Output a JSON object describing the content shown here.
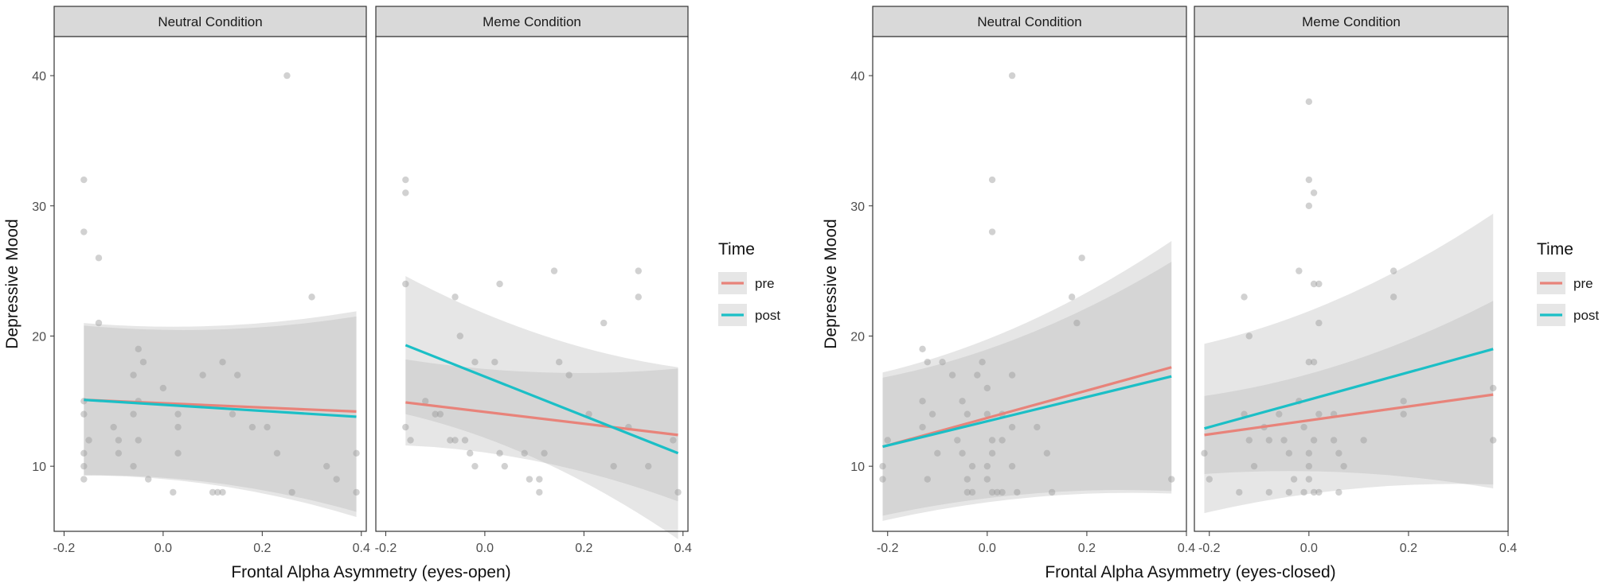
{
  "colors": {
    "pre": "#e8837a",
    "post": "#1bbfc6",
    "ci_light": "#e6e6e6",
    "ci_dark": "#d6d6d6",
    "point": "#9a9a9a",
    "strip_bg": "#d9d9d9",
    "axis_text": "#4d4d4d"
  },
  "chart_data": [
    {
      "type": "scatter",
      "xlabel": "Frontal Alpha Asymmetry (eyes-open)",
      "ylabel": "Depressive Mood",
      "xlim": [
        -0.22,
        0.41
      ],
      "ylim": [
        5,
        43
      ],
      "xticks": [
        -0.2,
        0.0,
        0.2,
        0.4
      ],
      "xtick_labels": [
        "-0.2",
        "0.0",
        "0.2",
        "0.4"
      ],
      "yticks": [
        10,
        20,
        30,
        40
      ],
      "ytick_labels": [
        "10",
        "20",
        "30",
        "40"
      ],
      "legend": {
        "title": "Time",
        "position": "right",
        "entries": [
          {
            "label": "pre",
            "series": "pre"
          },
          {
            "label": "post",
            "series": "post"
          }
        ]
      },
      "facets": [
        {
          "label": "Neutral Condition",
          "points": [
            [
              -0.16,
              32
            ],
            [
              -0.16,
              28
            ],
            [
              -0.13,
              26
            ],
            [
              -0.13,
              21
            ],
            [
              -0.16,
              15
            ],
            [
              -0.16,
              14
            ],
            [
              -0.15,
              12
            ],
            [
              -0.16,
              11
            ],
            [
              -0.16,
              10
            ],
            [
              -0.16,
              9
            ],
            [
              -0.1,
              13
            ],
            [
              -0.09,
              12
            ],
            [
              -0.09,
              11
            ],
            [
              -0.06,
              17
            ],
            [
              -0.05,
              15
            ],
            [
              -0.05,
              19
            ],
            [
              -0.04,
              18
            ],
            [
              -0.06,
              14
            ],
            [
              -0.05,
              12
            ],
            [
              -0.03,
              9
            ],
            [
              -0.06,
              10
            ],
            [
              0.0,
              16
            ],
            [
              0.03,
              14
            ],
            [
              0.03,
              13
            ],
            [
              0.03,
              11
            ],
            [
              0.08,
              17
            ],
            [
              0.12,
              18
            ],
            [
              0.15,
              17
            ],
            [
              0.14,
              14
            ],
            [
              0.18,
              13
            ],
            [
              0.21,
              13
            ],
            [
              0.11,
              8
            ],
            [
              0.1,
              8
            ],
            [
              0.12,
              8
            ],
            [
              0.02,
              8
            ],
            [
              0.25,
              40
            ],
            [
              0.3,
              23
            ],
            [
              0.33,
              10
            ],
            [
              0.35,
              9
            ],
            [
              0.39,
              11
            ],
            [
              0.39,
              8
            ],
            [
              0.26,
              8
            ],
            [
              0.23,
              11
            ]
          ],
          "fits": [
            {
              "series": "pre",
              "x": [
                -0.16,
                0.39
              ],
              "y": [
                15.1,
                14.2
              ],
              "ci_lower": [
                9.3,
                6.5
              ],
              "ci_upper": [
                21.0,
                21.9
              ]
            },
            {
              "series": "post",
              "x": [
                -0.16,
                0.39
              ],
              "y": [
                15.1,
                13.8
              ],
              "ci_lower": [
                9.3,
                6.1
              ],
              "ci_upper": [
                20.8,
                21.5
              ]
            }
          ]
        },
        {
          "label": "Meme Condition",
          "points": [
            [
              -0.16,
              32
            ],
            [
              -0.16,
              31
            ],
            [
              -0.16,
              24
            ],
            [
              -0.16,
              13
            ],
            [
              -0.15,
              12
            ],
            [
              -0.12,
              15
            ],
            [
              -0.1,
              14
            ],
            [
              -0.09,
              14
            ],
            [
              -0.07,
              12
            ],
            [
              -0.06,
              12
            ],
            [
              -0.04,
              12
            ],
            [
              -0.03,
              11
            ],
            [
              -0.02,
              10
            ],
            [
              -0.06,
              23
            ],
            [
              -0.05,
              20
            ],
            [
              -0.02,
              18
            ],
            [
              0.02,
              18
            ],
            [
              0.03,
              11
            ],
            [
              0.04,
              10
            ],
            [
              0.03,
              24
            ],
            [
              0.08,
              11
            ],
            [
              0.09,
              9
            ],
            [
              0.11,
              8
            ],
            [
              0.12,
              11
            ],
            [
              0.11,
              9
            ],
            [
              0.14,
              25
            ],
            [
              0.15,
              18
            ],
            [
              0.17,
              17
            ],
            [
              0.24,
              21
            ],
            [
              0.31,
              25
            ],
            [
              0.31,
              23
            ],
            [
              0.26,
              10
            ],
            [
              0.29,
              13
            ],
            [
              0.33,
              10
            ],
            [
              0.38,
              12
            ],
            [
              0.39,
              8
            ],
            [
              0.21,
              14
            ]
          ],
          "fits": [
            {
              "series": "pre",
              "x": [
                -0.16,
                0.39
              ],
              "y": [
                14.9,
                12.4
              ],
              "ci_lower": [
                11.6,
                7.3
              ],
              "ci_upper": [
                18.2,
                17.5
              ]
            },
            {
              "series": "post",
              "x": [
                -0.16,
                0.39
              ],
              "y": [
                19.3,
                11.0
              ],
              "ci_lower": [
                14.0,
                4.4
              ],
              "ci_upper": [
                24.6,
                17.6
              ]
            }
          ]
        }
      ]
    },
    {
      "type": "scatter",
      "xlabel": "Frontal Alpha Asymmetry (eyes-closed)",
      "ylabel": "Depressive Mood",
      "xlim": [
        -0.23,
        0.4
      ],
      "ylim": [
        5,
        43
      ],
      "xticks": [
        -0.2,
        0.0,
        0.2,
        0.4
      ],
      "xtick_labels": [
        "-0.2",
        "0.0",
        "0.2",
        "0.4"
      ],
      "yticks": [
        10,
        20,
        30,
        40
      ],
      "ytick_labels": [
        "10",
        "20",
        "30",
        "40"
      ],
      "legend": {
        "title": "Time",
        "position": "right",
        "entries": [
          {
            "label": "pre",
            "series": "pre"
          },
          {
            "label": "post",
            "series": "post"
          }
        ]
      },
      "facets": [
        {
          "label": "Neutral Condition",
          "points": [
            [
              -0.21,
              10
            ],
            [
              -0.21,
              9
            ],
            [
              -0.2,
              12
            ],
            [
              -0.13,
              19
            ],
            [
              -0.12,
              18
            ],
            [
              -0.13,
              15
            ],
            [
              -0.11,
              14
            ],
            [
              -0.13,
              13
            ],
            [
              -0.1,
              11
            ],
            [
              -0.12,
              9
            ],
            [
              -0.09,
              18
            ],
            [
              -0.07,
              17
            ],
            [
              -0.05,
              15
            ],
            [
              -0.04,
              14
            ],
            [
              -0.06,
              12
            ],
            [
              -0.05,
              11
            ],
            [
              -0.03,
              10
            ],
            [
              -0.04,
              9
            ],
            [
              -0.04,
              8
            ],
            [
              -0.03,
              8
            ],
            [
              -0.02,
              17
            ],
            [
              -0.01,
              18
            ],
            [
              0.0,
              16
            ],
            [
              0.0,
              14
            ],
            [
              0.01,
              12
            ],
            [
              0.01,
              11
            ],
            [
              0.0,
              10
            ],
            [
              0.0,
              9
            ],
            [
              0.01,
              8
            ],
            [
              0.02,
              8
            ],
            [
              0.03,
              8
            ],
            [
              0.01,
              32
            ],
            [
              0.01,
              28
            ],
            [
              0.05,
              40
            ],
            [
              0.03,
              14
            ],
            [
              0.03,
              12
            ],
            [
              0.05,
              17
            ],
            [
              0.05,
              13
            ],
            [
              0.05,
              10
            ],
            [
              0.06,
              8
            ],
            [
              0.1,
              13
            ],
            [
              0.12,
              11
            ],
            [
              0.13,
              8
            ],
            [
              0.17,
              23
            ],
            [
              0.18,
              21
            ],
            [
              0.19,
              26
            ],
            [
              0.37,
              9
            ]
          ],
          "fits": [
            {
              "series": "pre",
              "x": [
                -0.21,
                0.37
              ],
              "y": [
                11.5,
                17.6
              ],
              "ci_lower": [
                5.8,
                7.9
              ],
              "ci_upper": [
                17.2,
                27.3
              ]
            },
            {
              "series": "post",
              "x": [
                -0.21,
                0.37
              ],
              "y": [
                11.5,
                16.9
              ],
              "ci_lower": [
                6.2,
                8.1
              ],
              "ci_upper": [
                16.8,
                25.7
              ]
            }
          ]
        },
        {
          "label": "Meme Condition",
          "points": [
            [
              -0.21,
              11
            ],
            [
              -0.2,
              9
            ],
            [
              -0.13,
              23
            ],
            [
              -0.12,
              20
            ],
            [
              -0.13,
              14
            ],
            [
              -0.12,
              12
            ],
            [
              -0.14,
              8
            ],
            [
              -0.11,
              10
            ],
            [
              -0.09,
              13
            ],
            [
              -0.08,
              12
            ],
            [
              -0.08,
              8
            ],
            [
              -0.06,
              14
            ],
            [
              -0.05,
              12
            ],
            [
              -0.04,
              11
            ],
            [
              -0.03,
              9
            ],
            [
              -0.04,
              8
            ],
            [
              -0.02,
              15
            ],
            [
              -0.01,
              13
            ],
            [
              -0.01,
              8
            ],
            [
              -0.02,
              25
            ],
            [
              0.0,
              38
            ],
            [
              0.0,
              32
            ],
            [
              0.01,
              31
            ],
            [
              0.0,
              30
            ],
            [
              0.0,
              18
            ],
            [
              0.01,
              24
            ],
            [
              0.02,
              24
            ],
            [
              0.02,
              21
            ],
            [
              0.01,
              18
            ],
            [
              0.02,
              14
            ],
            [
              0.01,
              12
            ],
            [
              0.0,
              11
            ],
            [
              0.0,
              10
            ],
            [
              0.0,
              9
            ],
            [
              0.01,
              8
            ],
            [
              0.02,
              8
            ],
            [
              0.05,
              14
            ],
            [
              0.05,
              12
            ],
            [
              0.06,
              11
            ],
            [
              0.07,
              10
            ],
            [
              0.06,
              8
            ],
            [
              0.11,
              12
            ],
            [
              0.17,
              25
            ],
            [
              0.17,
              23
            ],
            [
              0.19,
              15
            ],
            [
              0.19,
              14
            ],
            [
              0.37,
              16
            ],
            [
              0.37,
              12
            ]
          ],
          "fits": [
            {
              "series": "pre",
              "x": [
                -0.21,
                0.37
              ],
              "y": [
                12.4,
                15.5
              ],
              "ci_lower": [
                9.4,
                8.3
              ],
              "ci_upper": [
                15.4,
                22.7
              ]
            },
            {
              "series": "post",
              "x": [
                -0.21,
                0.37
              ],
              "y": [
                12.9,
                19.0
              ],
              "ci_lower": [
                6.4,
                8.6
              ],
              "ci_upper": [
                19.4,
                29.4
              ]
            }
          ]
        }
      ]
    }
  ]
}
